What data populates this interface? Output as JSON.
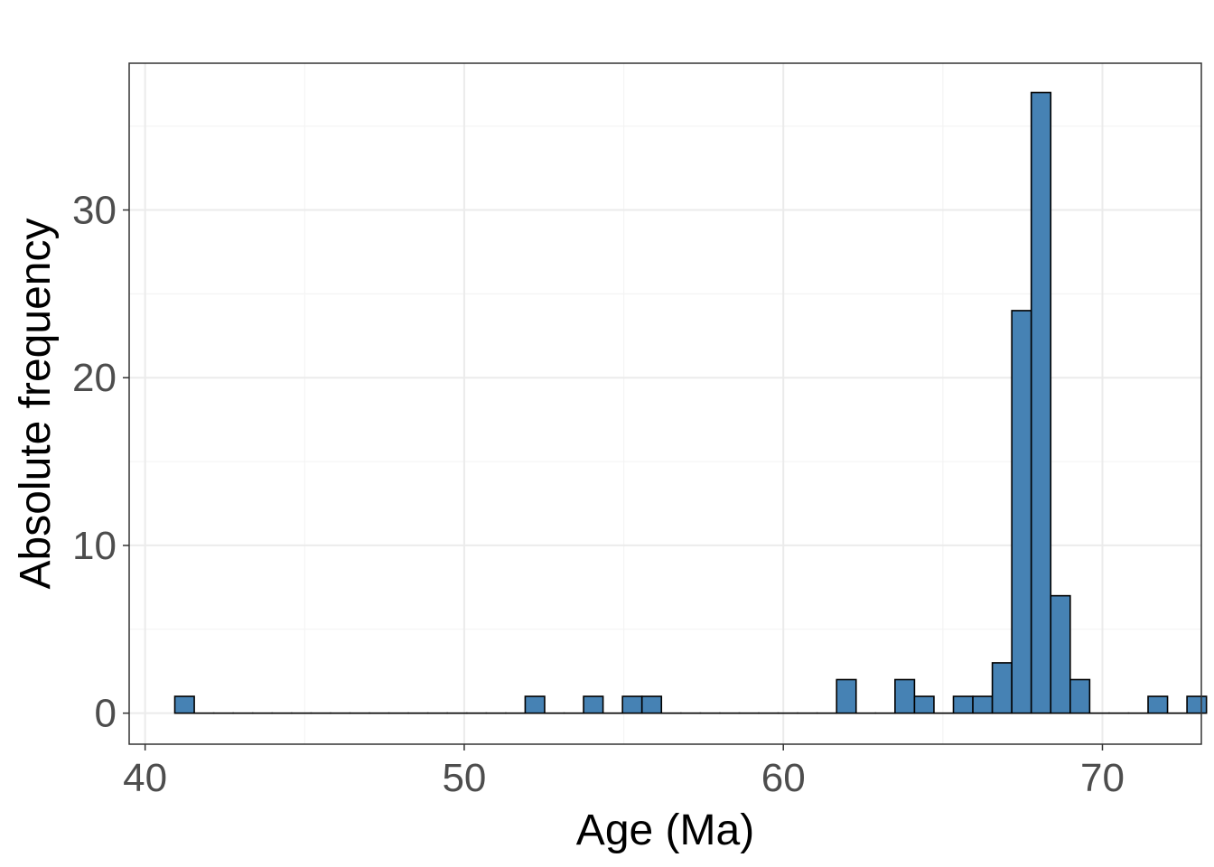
{
  "chart_data": {
    "type": "bar",
    "xlabel": "Age (Ma)",
    "ylabel": "Absolute frequency",
    "xlim": [
      39.5,
      73.1
    ],
    "ylim": [
      -1.85,
      38.75
    ],
    "x_ticks": [
      40,
      50,
      60,
      70
    ],
    "x_tick_labels": [
      "40",
      "50",
      "60",
      "70"
    ],
    "y_ticks": [
      0,
      10,
      20,
      30
    ],
    "y_tick_labels": [
      "0",
      "10",
      "20",
      "30"
    ],
    "grid": true,
    "bin_width": 0.61,
    "bin_start": 40.93,
    "counts": [
      1,
      0,
      0,
      0,
      0,
      0,
      0,
      0,
      0,
      0,
      0,
      0,
      0,
      0,
      0,
      0,
      0,
      0,
      1,
      0,
      0,
      1,
      0,
      1,
      1,
      0,
      0,
      0,
      0,
      0,
      0,
      0,
      0,
      0,
      2,
      0,
      0,
      2,
      1,
      0,
      1,
      1,
      3,
      24,
      37,
      7,
      2,
      0,
      0,
      0,
      1,
      0,
      1
    ],
    "colors": {
      "bar_fill": "#4682b4",
      "bar_stroke": "#000000",
      "grid_major": "#ebebeb",
      "grid_minor": "#f4f4f4",
      "panel_border": "#333333",
      "tick_label": "#4d4d4d"
    }
  }
}
